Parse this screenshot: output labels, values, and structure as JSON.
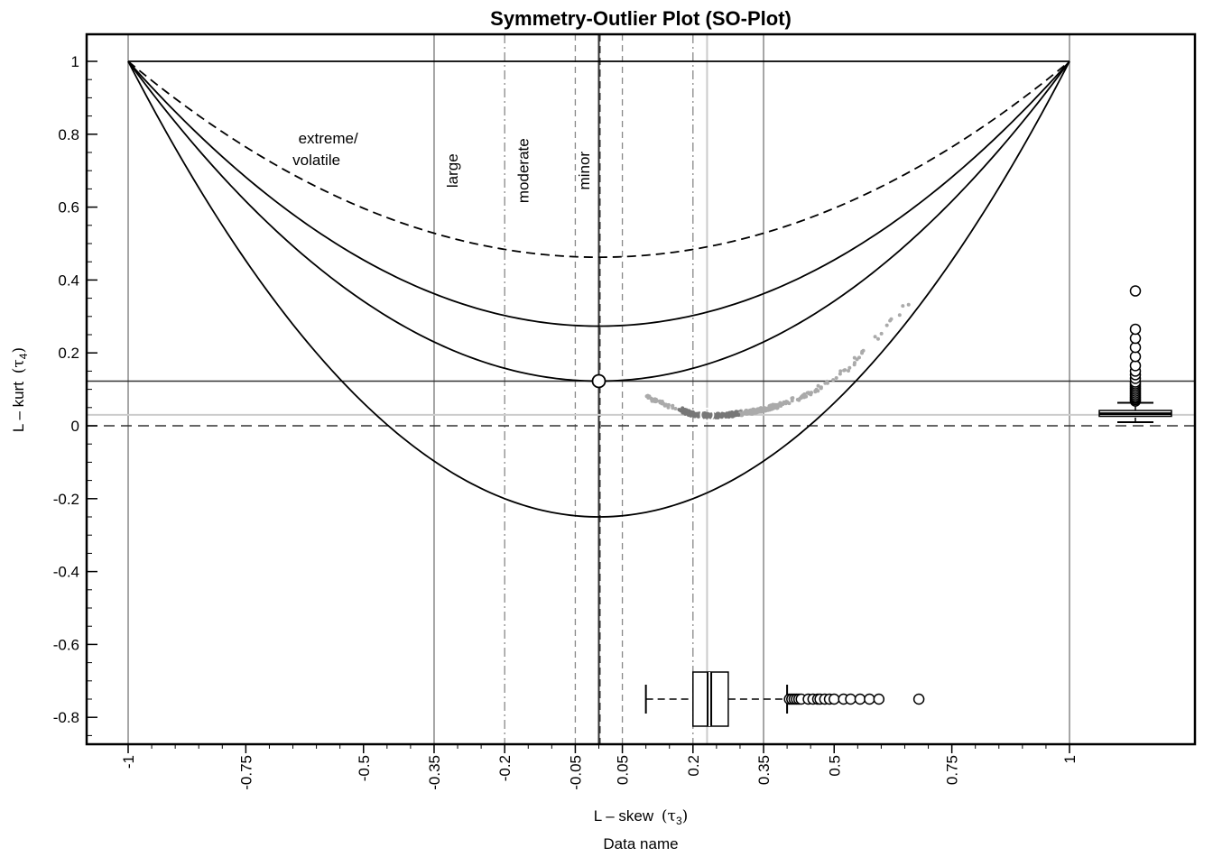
{
  "chart_data": {
    "type": "scatter",
    "title": "Symmetry-Outlier Plot (SO-Plot)",
    "xlabel": "L – skew",
    "xlabel_symbol": "(τ",
    "xlabel_sub": "3",
    "xlabel_close": ")",
    "ylabel": "L – kurt",
    "ylabel_symbol": "(τ",
    "ylabel_sub": "4",
    "ylabel_close": ")",
    "data_name": "Data name",
    "xlim": [
      -1.09,
      1.3
    ],
    "ylim": [
      -0.87,
      1.07
    ],
    "x_ticks": [
      -1,
      -0.75,
      -0.5,
      -0.35,
      -0.2,
      -0.05,
      0.05,
      0.2,
      0.35,
      0.5,
      0.75,
      1
    ],
    "x_tick_labels": [
      "-1",
      "-0.75",
      "-0.5",
      "-0.35",
      "-0.2",
      "-0.05",
      "0.05",
      "0.2",
      "0.35",
      "0.5",
      "0.75",
      "1"
    ],
    "y_ticks": [
      1,
      0.8,
      0.6,
      0.4,
      0.2,
      0,
      -0.2,
      -0.4,
      -0.6,
      -0.8
    ],
    "y_tick_labels": [
      "1",
      "0.8",
      "0.6",
      "0.4",
      "0.2",
      "0",
      "-0.2",
      "-0.4",
      "-0.6",
      "-0.8"
    ],
    "region_labels": [
      {
        "text": "extreme/",
        "x": -0.575,
        "y": 0.775,
        "rotate": false
      },
      {
        "text": "volatile",
        "x": -0.6,
        "y": 0.715,
        "rotate": false
      },
      {
        "text": "large",
        "x": -0.3,
        "y": 0.7,
        "rotate": true
      },
      {
        "text": "moderate",
        "x": -0.15,
        "y": 0.7,
        "rotate": true
      },
      {
        "text": "minor",
        "x": -0.02,
        "y": 0.7,
        "rotate": true
      }
    ],
    "curves": [
      {
        "name": "",
        "A": 0.4625,
        "B": 0.5375,
        "style": "dashed"
      },
      {
        "name": "",
        "A": 0.2734,
        "B": 0.7266,
        "style": "solid"
      },
      {
        "name": "",
        "A": 0.1226,
        "B": 0.8774,
        "style": "solid"
      },
      {
        "name": "",
        "A": -0.25,
        "B": 1.25,
        "style": "solid"
      }
    ],
    "reference_points": [
      {
        "x": 0,
        "y": 0.1226
      },
      {
        "x": 0.23,
        "y": 0.03
      }
    ],
    "reference_lines": {
      "hline_solid": 0.1226,
      "hline_dashed": 0,
      "hline_light": 0.03,
      "vline_mean": 0.23,
      "vlines_solid": [
        -1,
        -0.35,
        0.35,
        1
      ],
      "vlines_dashdot": [
        -0.2,
        0.2
      ],
      "vlines_dashed": [
        -0.05,
        0.05
      ]
    },
    "scatter_cloud": {
      "description_points": [
        [
          0.1,
          0.08
        ],
        [
          0.12,
          0.07
        ],
        [
          0.15,
          0.055
        ],
        [
          0.18,
          0.04
        ],
        [
          0.2,
          0.032
        ],
        [
          0.23,
          0.028
        ],
        [
          0.26,
          0.028
        ],
        [
          0.29,
          0.032
        ],
        [
          0.32,
          0.038
        ],
        [
          0.35,
          0.045
        ],
        [
          0.38,
          0.055
        ],
        [
          0.41,
          0.07
        ],
        [
          0.44,
          0.085
        ],
        [
          0.47,
          0.105
        ],
        [
          0.5,
          0.13
        ],
        [
          0.53,
          0.16
        ],
        [
          0.56,
          0.2
        ],
        [
          0.6,
          0.255
        ],
        [
          0.68,
          0.37
        ]
      ]
    },
    "x_boxplot": {
      "y_position": -0.75,
      "whisker_low": 0.1,
      "q1": 0.2,
      "median": 0.235,
      "q3": 0.275,
      "whisker_high": 0.4,
      "outliers": [
        0.405,
        0.41,
        0.415,
        0.42,
        0.425,
        0.43,
        0.445,
        0.455,
        0.465,
        0.47,
        0.48,
        0.49,
        0.5,
        0.52,
        0.535,
        0.555,
        0.575,
        0.595,
        0.68
      ]
    },
    "y_boxplot": {
      "x_position": 1.14,
      "whisker_low": 0.01,
      "q1": 0.026,
      "median": 0.033,
      "q3": 0.042,
      "whisker_high": 0.063,
      "outliers": [
        0.068,
        0.072,
        0.076,
        0.08,
        0.085,
        0.09,
        0.095,
        0.1,
        0.105,
        0.11,
        0.115,
        0.12,
        0.13,
        0.14,
        0.15,
        0.165,
        0.19,
        0.215,
        0.24,
        0.265,
        0.37
      ]
    }
  }
}
